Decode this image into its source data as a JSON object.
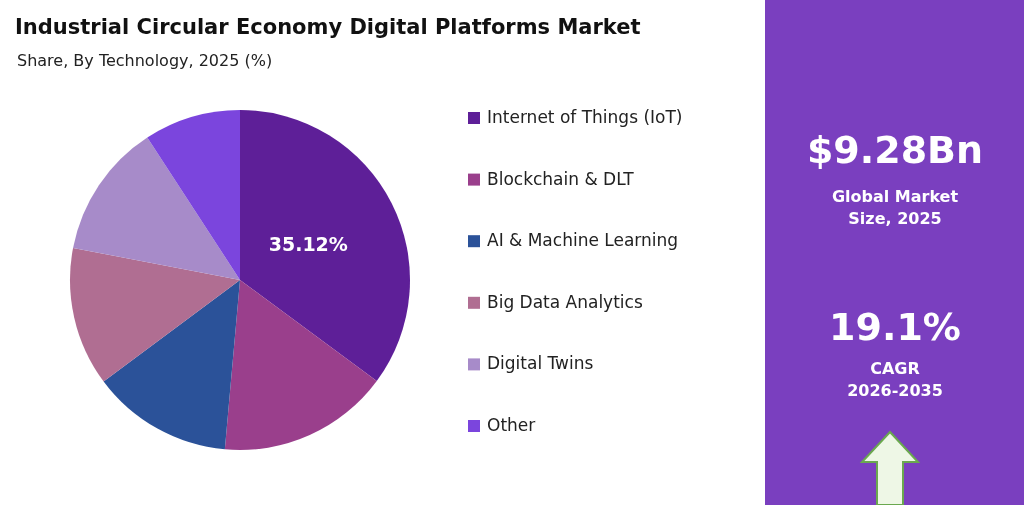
{
  "chart_data": [
    {
      "type": "pie",
      "title": "Industrial Circular Economy Digital Platforms Market",
      "subtitle": "Share, By Technology, 2025 (%)",
      "categories": [
        "Internet of Things (IoT)",
        "Blockchain & DLT",
        "AI & Machine Learning",
        "Big Data Analytics",
        "Digital Twins",
        "Other"
      ],
      "values": [
        35.12,
        16.3,
        13.4,
        13.2,
        12.8,
        9.18
      ],
      "colors": [
        "#5e1f98",
        "#9a3f8c",
        "#2b5299",
        "#b06e92",
        "#a78bc9",
        "#7b45dd"
      ],
      "value_labels": [
        "35.12%",
        null,
        null,
        null,
        null,
        null
      ],
      "legend": "right"
    },
    {
      "type": "other",
      "annotations": [
        "$9.28Bn",
        "Global Market",
        "Size, 2025",
        "19.1%",
        "CAGR",
        "2026-2035"
      ]
    }
  ]
}
